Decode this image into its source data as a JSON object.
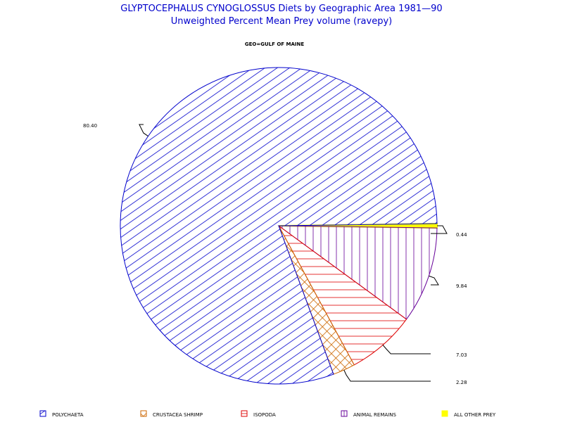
{
  "title": "GLYPTOCEPHALUS CYNOGLOSSUS Diets by Geographic Area 1981—90",
  "subtitle": "Unweighted Percent Mean Prey volume (ravepy)",
  "group_label": "GEO=GULF OF MAINE",
  "chart_data": {
    "type": "pie",
    "title": "GLYPTOCEPHALUS CYNOGLOSSUS Diets by Geographic Area 1981—90",
    "subtitle": "Unweighted Percent Mean Prey volume (ravepy)",
    "group": "GEO=GULF OF MAINE",
    "legend_position": "bottom",
    "slices": [
      {
        "name": "POLYCHAETA",
        "value": 80.4,
        "label": "80.40",
        "color": "#0000cc",
        "pattern": "diag-up"
      },
      {
        "name": "CRUSTACEA SHRIMP",
        "value": 2.28,
        "label": "2.28",
        "color": "#cc6600",
        "pattern": "crosshatch"
      },
      {
        "name": "ISOPODA",
        "value": 7.03,
        "label": "7.03",
        "color": "#dd0000",
        "pattern": "horizontal"
      },
      {
        "name": "ANIMAL REMAINS",
        "value": 9.84,
        "label": "9.84",
        "color": "#660099",
        "pattern": "vertical"
      },
      {
        "name": "ALL OTHER PREY",
        "value": 0.44,
        "label": "0.44",
        "color": "#ffff00",
        "pattern": "solid"
      }
    ]
  }
}
